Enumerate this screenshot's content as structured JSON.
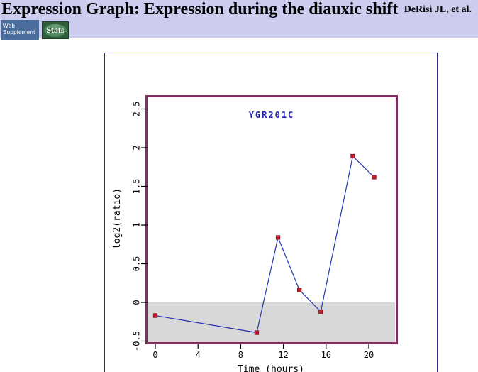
{
  "header": {
    "title": "Expression Graph: Expression during the diauxic shift",
    "citation": "DeRisi JL, et al.",
    "background_color": "#ccccee",
    "web_supplement_button": {
      "label": "Web Supplement",
      "line1": "Web",
      "line2": "Supplement",
      "color": "#4a6d9b"
    },
    "stats_button": {
      "label": "Stats",
      "color": "#2f5d3d"
    }
  },
  "chart_data": {
    "type": "line",
    "title": "YGR201C",
    "xlabel": "Time (hours)",
    "ylabel": "log2(ratio)",
    "x": [
      0,
      9.5,
      11.5,
      13.5,
      15.5,
      18.5,
      20.5
    ],
    "y": [
      -0.17,
      -0.39,
      0.84,
      0.16,
      -0.12,
      1.89,
      1.62
    ],
    "x_ticks": [
      0,
      4,
      8,
      12,
      16,
      20
    ],
    "y_ticks": [
      2.5,
      2,
      1.5,
      1,
      0.5,
      0,
      -0.5
    ],
    "xlim": [
      -0.75,
      22.6
    ],
    "ylim": [
      -0.52,
      2.66
    ],
    "grid": false,
    "legend": null,
    "marker": "square",
    "line_color": "#2234b0",
    "marker_color": "#c42030",
    "marker_edge_color": "#7a1420",
    "plot_border_color": "#7d3060",
    "frame_border_color": "#2e2e8f",
    "title_color": "#2222bb",
    "shaded_region": {
      "from": -0.52,
      "to": 0,
      "color": "#d8d8d8"
    }
  }
}
